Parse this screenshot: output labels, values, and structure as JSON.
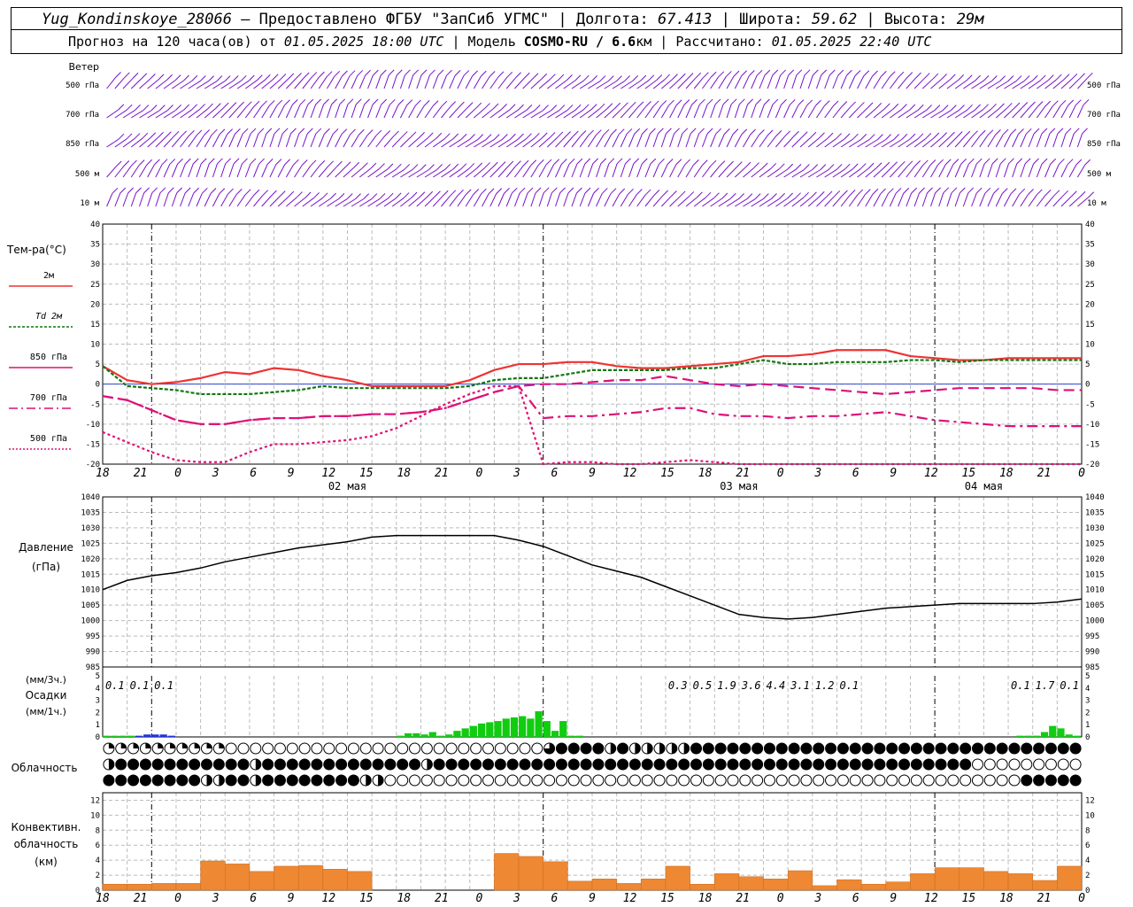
{
  "header": {
    "station": "Yug_Kondinskoye_28066",
    "provider": " – Предоставлено ФГБУ \"ЗапСиб УГМС\" | Долгота: ",
    "lon": "67.413",
    "lat_label": " | Широта: ",
    "lat": "59.62",
    "alt_label": " | Высота: ",
    "alt": "29м",
    "forecast_prefix": "Прогноз на 120 часа(ов) от ",
    "forecast_time": "01.05.2025 18:00 UTC",
    "model_prefix": "  | Модель ",
    "model": "COSMO-RU / 6.6",
    "model_unit": "км | Рассчитано: ",
    "calc_time": "01.05.2025 22:40 UTC"
  },
  "labels": {
    "wind": "Ветер",
    "wind_levels": [
      "500 гПа",
      "700 гПа",
      "850 гПа",
      "500 м",
      "10 м"
    ],
    "temp": "Тем-ра(°С)",
    "temp_legend": [
      "2м",
      "Td  2м",
      "850 гПа",
      "700 гПа",
      "500 гПа"
    ],
    "pressure": "Давление",
    "pressure_unit": "(гПа)",
    "precip_top": "(мм/3ч.)",
    "precip": "Осадки",
    "precip_unit": "(мм/1ч.)",
    "cloud": "Облачность",
    "conv1": "Конвективн.",
    "conv2": "облачность",
    "conv_unit": "(км)"
  },
  "colors": {
    "t2m": "#ee3333",
    "td2m": "#117711",
    "t850": "#dd1177",
    "wind": "#7711cc",
    "precip": "#11cc11",
    "precip_snow": "#2233dd",
    "conv": "#ee8833",
    "zero_line": "#3344cc"
  },
  "chart_data": [
    {
      "type": "barb",
      "title": "Ветер",
      "levels": [
        "500 гПа",
        "700 гПа",
        "850 гПа",
        "500 м",
        "10 м"
      ]
    },
    {
      "type": "line",
      "title": "Тем-ра(°С)",
      "ylim": [
        -20,
        40
      ],
      "yticks": [
        -20,
        -15,
        -10,
        -5,
        0,
        5,
        10,
        15,
        20,
        25,
        30,
        35,
        40
      ],
      "x_hours": [
        0,
        3,
        6,
        9,
        12,
        15,
        18,
        21,
        24,
        27,
        30,
        33,
        36,
        39,
        42,
        45,
        48,
        51,
        54,
        57,
        60,
        63,
        66,
        69,
        72,
        75,
        78,
        81,
        84,
        87,
        90,
        93,
        96,
        99,
        102,
        105,
        108,
        111,
        114,
        117,
        120
      ],
      "xtick_labels": [
        "18",
        "21",
        "0",
        "3",
        "6",
        "9",
        "12",
        "15",
        "18",
        "21",
        "0",
        "3",
        "6",
        "9",
        "12",
        "15",
        "18",
        "21",
        "0",
        "3",
        "6",
        "9",
        "12",
        "15",
        "18",
        "21",
        "0"
      ],
      "date_labels": [
        "02 мая",
        "03 мая",
        "04 мая"
      ],
      "series": [
        {
          "name": "2м",
          "values": [
            4.5,
            1,
            0,
            0.5,
            1.5,
            3,
            2.5,
            4,
            3.5,
            2,
            1,
            -0.5,
            -0.5,
            -0.5,
            -0.5,
            1,
            3.5,
            5,
            5,
            5.5,
            5.5,
            4.5,
            4,
            4,
            4.5,
            5,
            5.5,
            7,
            7,
            7.5,
            8.5,
            8.5,
            8.5,
            7,
            6.5,
            6,
            6,
            6.5,
            6.5,
            6.5,
            6.5
          ]
        },
        {
          "name": "Td  2м",
          "values": [
            4.5,
            -0.5,
            -1,
            -1.5,
            -2.5,
            -2.5,
            -2.5,
            -2,
            -1.5,
            -0.5,
            -1,
            -1,
            -1,
            -1,
            -1,
            -0.5,
            1,
            1.5,
            1.5,
            2.5,
            3.5,
            3.5,
            3.5,
            3.5,
            4,
            4,
            5,
            6,
            5,
            5,
            5.5,
            5.5,
            5.5,
            6,
            6,
            5.5,
            6,
            6,
            6,
            6,
            6
          ]
        },
        {
          "name": "850 гПа",
          "values": [
            -3,
            -4,
            -6.5,
            -9,
            -10,
            -10,
            -9,
            -8.5,
            -8.5,
            -8,
            -8,
            -7.5,
            -7.5,
            -7,
            -6,
            -4,
            -2,
            -0.5,
            0,
            0,
            0.5,
            1,
            1,
            2,
            1,
            0,
            -0.5,
            0,
            -0.5,
            -1,
            -1.5,
            -2,
            -2.5,
            -2,
            -1.5,
            -1,
            -1,
            -1,
            -1,
            -1.5,
            -1.5
          ]
        },
        {
          "name": "700 гПа",
          "values": [
            -3,
            -4,
            -6.5,
            -9,
            -10,
            -10,
            -9,
            -8.5,
            -8.5,
            -8,
            -8,
            -7.5,
            -7.5,
            -7,
            -6,
            -4,
            -2,
            -0.5,
            -8.5,
            -8,
            -8,
            -7.5,
            -7,
            -6,
            -6,
            -7.5,
            -8,
            -8,
            -8.5,
            -8,
            -8,
            -7.5,
            -7,
            -8,
            -9,
            -9.5,
            -10,
            -10.5,
            -10.5,
            -10.5,
            -10.5
          ]
        },
        {
          "name": "500 гПа",
          "values": [
            -12,
            -14.5,
            -17,
            -19,
            -19.5,
            -19.5,
            -17,
            -15,
            -15,
            -14.5,
            -14,
            -13,
            -11,
            -8,
            -5,
            -2.5,
            -0.5,
            -0.5,
            -20,
            -19.5,
            -19.5,
            -20,
            -20,
            -19.5,
            -19,
            -19.5,
            -20,
            -20,
            -20,
            -20,
            -20,
            -20,
            -20,
            -20,
            -20,
            -20,
            -20,
            -20,
            -20,
            -20,
            -20
          ]
        }
      ]
    },
    {
      "type": "line",
      "title": "Давление",
      "ylabel": "(гПа)",
      "ylim": [
        985,
        1040
      ],
      "yticks": [
        985,
        990,
        995,
        1000,
        1005,
        1010,
        1015,
        1020,
        1025,
        1030,
        1035,
        1040
      ],
      "x_hours": [
        0,
        3,
        6,
        9,
        12,
        15,
        18,
        21,
        24,
        27,
        30,
        33,
        36,
        39,
        42,
        45,
        48,
        51,
        54,
        57,
        60,
        63,
        66,
        69,
        72,
        75,
        78,
        81,
        84,
        87,
        90,
        93,
        96,
        99,
        102,
        105,
        108,
        111,
        114,
        117,
        120
      ],
      "series": [
        {
          "name": "Давление",
          "values": [
            1010,
            1013,
            1014.5,
            1015.5,
            1017,
            1019,
            1020.5,
            1022,
            1023.5,
            1024.5,
            1025.5,
            1027,
            1027.5,
            1027.5,
            1027.5,
            1027.5,
            1027.5,
            1026,
            1024,
            1021,
            1018,
            1016,
            1014,
            1011,
            1008,
            1005,
            1002,
            1001,
            1000.5,
            1001,
            1002,
            1003,
            1004,
            1004.5,
            1005,
            1005.5,
            1005.5,
            1005.5,
            1005.5,
            1006,
            1007
          ]
        }
      ]
    },
    {
      "type": "bar",
      "title": "Осадки",
      "ylabel": "(мм/1ч.)",
      "ylim": [
        0,
        5
      ],
      "yticks": [
        0,
        1,
        2,
        3,
        4,
        5
      ],
      "labels_3h": [
        {
          "hour": 1.5,
          "text": "0.1"
        },
        {
          "hour": 4.5,
          "text": "0.1"
        },
        {
          "hour": 7.5,
          "text": "0.1"
        },
        {
          "hour": 70.5,
          "text": "0.3"
        },
        {
          "hour": 73.5,
          "text": "0.5"
        },
        {
          "hour": 76.5,
          "text": "1.9"
        },
        {
          "hour": 79.5,
          "text": "3.6"
        },
        {
          "hour": 82.5,
          "text": "4.4"
        },
        {
          "hour": 85.5,
          "text": "3.1"
        },
        {
          "hour": 88.5,
          "text": "1.2"
        },
        {
          "hour": 91.5,
          "text": "0.1"
        },
        {
          "hour": 112.5,
          "text": "0.1"
        },
        {
          "hour": 115.5,
          "text": "1.7"
        },
        {
          "hour": 118.5,
          "text": "0.1"
        }
      ],
      "bars": [
        {
          "hour": 0,
          "value": 0.1,
          "kind": "rain"
        },
        {
          "hour": 1,
          "value": 0.1,
          "kind": "rain"
        },
        {
          "hour": 2,
          "value": 0.1,
          "kind": "rain"
        },
        {
          "hour": 3,
          "value": 0.1,
          "kind": "rain"
        },
        {
          "hour": 4,
          "value": 0.1,
          "kind": "snow"
        },
        {
          "hour": 5,
          "value": 0.2,
          "kind": "snow"
        },
        {
          "hour": 6,
          "value": 0.2,
          "kind": "snow"
        },
        {
          "hour": 7,
          "value": 0.2,
          "kind": "snow"
        },
        {
          "hour": 8,
          "value": 0.1,
          "kind": "snow"
        },
        {
          "hour": 36,
          "value": 0.1,
          "kind": "rain"
        },
        {
          "hour": 37,
          "value": 0.3,
          "kind": "rain"
        },
        {
          "hour": 38,
          "value": 0.3,
          "kind": "rain"
        },
        {
          "hour": 39,
          "value": 0.2,
          "kind": "rain"
        },
        {
          "hour": 40,
          "value": 0.4,
          "kind": "rain"
        },
        {
          "hour": 41,
          "value": 0.1,
          "kind": "rain"
        },
        {
          "hour": 42,
          "value": 0.2,
          "kind": "rain"
        },
        {
          "hour": 43,
          "value": 0.5,
          "kind": "rain"
        },
        {
          "hour": 44,
          "value": 0.7,
          "kind": "rain"
        },
        {
          "hour": 45,
          "value": 0.9,
          "kind": "rain"
        },
        {
          "hour": 46,
          "value": 1.1,
          "kind": "rain"
        },
        {
          "hour": 47,
          "value": 1.2,
          "kind": "rain"
        },
        {
          "hour": 48,
          "value": 1.3,
          "kind": "rain"
        },
        {
          "hour": 49,
          "value": 1.5,
          "kind": "rain"
        },
        {
          "hour": 50,
          "value": 1.6,
          "kind": "rain"
        },
        {
          "hour": 51,
          "value": 1.7,
          "kind": "rain"
        },
        {
          "hour": 52,
          "value": 1.5,
          "kind": "rain"
        },
        {
          "hour": 53,
          "value": 2.1,
          "kind": "rain"
        },
        {
          "hour": 54,
          "value": 1.3,
          "kind": "rain"
        },
        {
          "hour": 55,
          "value": 0.5,
          "kind": "rain"
        },
        {
          "hour": 56,
          "value": 1.3,
          "kind": "rain"
        },
        {
          "hour": 57,
          "value": 0.1,
          "kind": "rain"
        },
        {
          "hour": 58,
          "value": 0.1,
          "kind": "rain"
        },
        {
          "hour": 112,
          "value": 0.1,
          "kind": "rain"
        },
        {
          "hour": 113,
          "value": 0.1,
          "kind": "rain"
        },
        {
          "hour": 114,
          "value": 0.1,
          "kind": "rain"
        },
        {
          "hour": 115,
          "value": 0.4,
          "kind": "rain"
        },
        {
          "hour": 116,
          "value": 0.9,
          "kind": "rain"
        },
        {
          "hour": 117,
          "value": 0.7,
          "kind": "rain"
        },
        {
          "hour": 118,
          "value": 0.2,
          "kind": "rain"
        },
        {
          "hour": 119,
          "value": 0.1,
          "kind": "rain"
        }
      ]
    },
    {
      "type": "table",
      "title": "Облачность",
      "row1": "qqqqqqqqqqooooooooooooooooooooooooootffffhfhhhhhfffffffffffffffffffffffffffffffffffffffffffffffffffffffffoooooooooooooooooooooooooooooooooooooooooooooooooooooooooooooooooooooooooooooooooooooooooooooooooooooooooooooooooooooooooooooooooooooooooooooooooooooooooooooooooooooooooooooooooooooooooooooooooooooooooooooooooooooooooooo",
      "row2": "hfffffffffffhfffffffffffffhffffffffffffffffffffffffffffffffffffffffffffoooooooooooooooooooooooooooooooooooooooooooooooooffffffffffffffffffffffffffffffffffffffffffffffffffffffffffffffffffffffffffffffffffffffffffffffffffffffffffffffffffffffffffffffffffffffffffffffffffffffffffffffffffffffffffffffffffffffffff",
      "row3": "ffffffffhhffhffffffffhhooooooooooooooooooooooooooooooooooooooooooooooooooooffffffffffffffffffffffffffffffffffffffffffffffffffffffffffffffffffffffffffffffffffffffffffffffffffffffffffffffffffffffffffffffffffffffffffffffffffffffffffffffffffffffffffffffffffffffffffffffffffffffffffffffffffffffffffffffffff"
    },
    {
      "type": "bar",
      "title": "Конвективн. облачность",
      "ylabel": "(км)",
      "ylim": [
        0,
        13
      ],
      "yticks": [
        0,
        2,
        4,
        6,
        8,
        10,
        12
      ],
      "ranges": [
        {
          "from": 0,
          "to": 3,
          "lo": 0,
          "hi": 0.8
        },
        {
          "from": 3,
          "to": 6,
          "lo": 0,
          "hi": 0.8
        },
        {
          "from": 6,
          "to": 9,
          "lo": 0,
          "hi": 0.9
        },
        {
          "from": 9,
          "to": 12,
          "lo": 0,
          "hi": 0.9
        },
        {
          "from": 12,
          "to": 15,
          "lo": 0,
          "hi": 3.9
        },
        {
          "from": 15,
          "to": 18,
          "lo": 0,
          "hi": 3.5
        },
        {
          "from": 18,
          "to": 21,
          "lo": 0,
          "hi": 2.5
        },
        {
          "from": 21,
          "to": 24,
          "lo": 0,
          "hi": 3.2
        },
        {
          "from": 24,
          "to": 27,
          "lo": 0,
          "hi": 3.3
        },
        {
          "from": 27,
          "to": 30,
          "lo": 0,
          "hi": 2.8
        },
        {
          "from": 30,
          "to": 33,
          "lo": 0,
          "hi": 2.5
        },
        {
          "from": 48,
          "to": 51,
          "lo": 0,
          "hi": 4.9
        },
        {
          "from": 51,
          "to": 54,
          "lo": 0,
          "hi": 4.5
        },
        {
          "from": 54,
          "to": 57,
          "lo": 0,
          "hi": 3.8
        },
        {
          "from": 57,
          "to": 60,
          "lo": 0,
          "hi": 1.2
        },
        {
          "from": 60,
          "to": 63,
          "lo": 0,
          "hi": 1.5
        },
        {
          "from": 63,
          "to": 66,
          "lo": 0,
          "hi": 0.9
        },
        {
          "from": 66,
          "to": 69,
          "lo": 0,
          "hi": 1.5
        },
        {
          "from": 69,
          "to": 72,
          "lo": 0,
          "hi": 3.2
        },
        {
          "from": 72,
          "to": 75,
          "lo": 0,
          "hi": 0.8
        },
        {
          "from": 75,
          "to": 78,
          "lo": 0,
          "hi": 2.2
        },
        {
          "from": 78,
          "to": 81,
          "lo": 0,
          "hi": 1.8
        },
        {
          "from": 81,
          "to": 84,
          "lo": 0,
          "hi": 1.5
        },
        {
          "from": 84,
          "to": 87,
          "lo": 0,
          "hi": 2.6
        },
        {
          "from": 87,
          "to": 90,
          "lo": 0,
          "hi": 0.6
        },
        {
          "from": 90,
          "to": 93,
          "lo": 0,
          "hi": 1.4
        },
        {
          "from": 93,
          "to": 96,
          "lo": 0,
          "hi": 0.8
        },
        {
          "from": 96,
          "to": 99,
          "lo": 0,
          "hi": 1.1
        },
        {
          "from": 99,
          "to": 102,
          "lo": 0,
          "hi": 2.2
        },
        {
          "from": 102,
          "to": 105,
          "lo": 0,
          "hi": 3.0
        },
        {
          "from": 105,
          "to": 108,
          "lo": 0,
          "hi": 3.0
        },
        {
          "from": 108,
          "to": 111,
          "lo": 0,
          "hi": 2.5
        },
        {
          "from": 111,
          "to": 114,
          "lo": 0,
          "hi": 2.2
        },
        {
          "from": 114,
          "to": 117,
          "lo": 0,
          "hi": 1.3
        },
        {
          "from": 117,
          "to": 120,
          "lo": 0,
          "hi": 3.2
        }
      ]
    }
  ]
}
